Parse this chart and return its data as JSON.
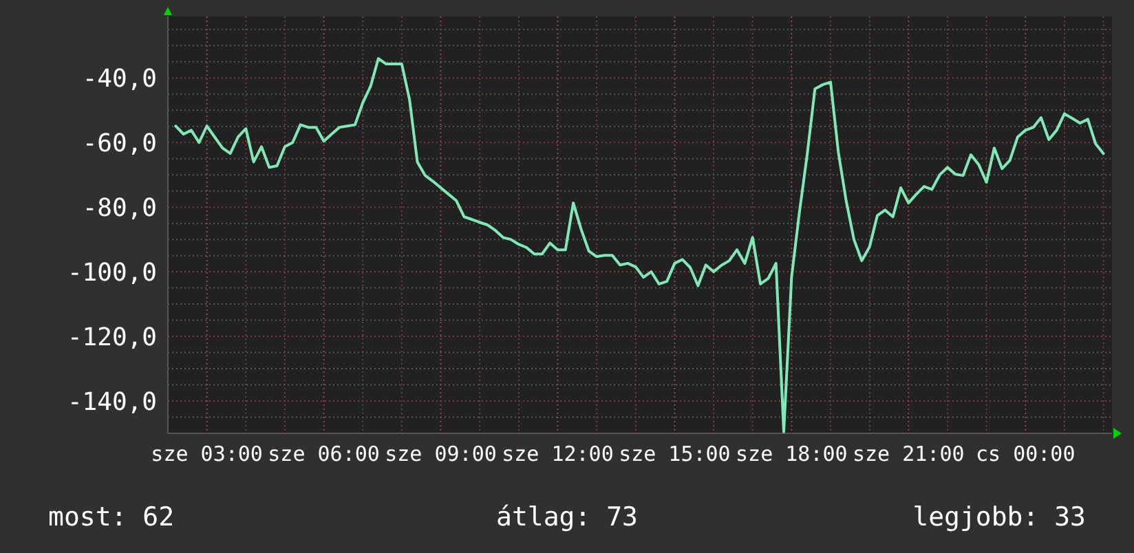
{
  "chart_data": {
    "type": "line",
    "categories": [
      null,
      null,
      null,
      null,
      "sze 03:00",
      null,
      null,
      null,
      null,
      null,
      null,
      null,
      null,
      null,
      null,
      null,
      null,
      null,
      null,
      "sze 06:00",
      null,
      null,
      null,
      null,
      null,
      null,
      null,
      null,
      null,
      null,
      null,
      null,
      null,
      null,
      "sze 09:00",
      null,
      null,
      null,
      null,
      null,
      null,
      null,
      null,
      null,
      null,
      null,
      null,
      null,
      null,
      "sze 12:00",
      null,
      null,
      null,
      null,
      null,
      null,
      null,
      null,
      null,
      null,
      null,
      null,
      null,
      null,
      "sze 15:00",
      null,
      null,
      null,
      null,
      null,
      null,
      null,
      null,
      null,
      null,
      null,
      null,
      null,
      null,
      "sze 18:00",
      null,
      null,
      null,
      null,
      null,
      null,
      null,
      null,
      null,
      null,
      null,
      null,
      null,
      null,
      "sze 21:00",
      null,
      null,
      null,
      null,
      null,
      null,
      null,
      null,
      null,
      null,
      null,
      null,
      null,
      null,
      "cs 00:00",
      null,
      null,
      null,
      null,
      null,
      null,
      null,
      null,
      null,
      null
    ],
    "series": [
      {
        "color": "#7fe8b4",
        "values": [
          -54.9,
          -57.4,
          -56.2,
          -60.0,
          -54.9,
          -58.3,
          -61.7,
          -63.4,
          -58.3,
          -55.7,
          -66.0,
          -61.3,
          -67.7,
          -67.2,
          -61.3,
          -60.0,
          -54.5,
          -55.3,
          -55.3,
          -59.6,
          -57.4,
          -55.3,
          -54.9,
          -54.5,
          -47.7,
          -42.6,
          -34.0,
          -35.7,
          -35.7,
          -35.7,
          -46.8,
          -66.0,
          -70.2,
          -72.0,
          -74.0,
          -76.0,
          -78.0,
          -83.0,
          -83.8,
          -84.7,
          -85.5,
          -87.2,
          -89.4,
          -90.0,
          -91.5,
          -92.5,
          -94.5,
          -94.5,
          -91.1,
          -93.2,
          -93.2,
          -78.7,
          -86.8,
          -93.6,
          -95.3,
          -94.9,
          -94.9,
          -97.9,
          -97.4,
          -98.5,
          -101.7,
          -100.0,
          -103.8,
          -103.0,
          -97.4,
          -96.2,
          -98.7,
          -104.3,
          -97.9,
          -100.0,
          -98.0,
          -96.6,
          -93.2,
          -97.4,
          -89.4,
          -103.8,
          -102.1,
          -97.4,
          -149.5,
          -101.7,
          -81.7,
          -63.8,
          -43.4,
          -42.1,
          -41.3,
          -63.0,
          -78.0,
          -90.0,
          -96.6,
          -92.3,
          -82.6,
          -80.9,
          -83.0,
          -74.0,
          -78.7,
          -76.0,
          -73.6,
          -74.5,
          -70.0,
          -67.7,
          -69.8,
          -70.2,
          -63.8,
          -66.8,
          -72.3,
          -61.7,
          -68.1,
          -65.5,
          -58.3,
          -56.2,
          -55.3,
          -52.3,
          -59.1,
          -56.2,
          -51.1,
          -52.5,
          -54.0,
          -52.8,
          -60.4,
          -63.4
        ]
      }
    ],
    "ylim": [
      -150,
      -21
    ],
    "yticks": [
      {
        "value": -145,
        "label": null
      },
      {
        "value": -140,
        "label": "-140,0"
      },
      {
        "value": -135,
        "label": null
      },
      {
        "value": -130,
        "label": null
      },
      {
        "value": -125,
        "label": null
      },
      {
        "value": -120,
        "label": "-120,0"
      },
      {
        "value": -115,
        "label": null
      },
      {
        "value": -110,
        "label": null
      },
      {
        "value": -105,
        "label": null
      },
      {
        "value": -100,
        "label": "-100,0"
      },
      {
        "value": -95,
        "label": null
      },
      {
        "value": -90,
        "label": null
      },
      {
        "value": -85,
        "label": null
      },
      {
        "value": -80,
        "label": "-80,0"
      },
      {
        "value": -75,
        "label": null
      },
      {
        "value": -70,
        "label": null
      },
      {
        "value": -65,
        "label": null
      },
      {
        "value": -60,
        "label": "-60,0"
      },
      {
        "value": -55,
        "label": null
      },
      {
        "value": -50,
        "label": null
      },
      {
        "value": -45,
        "label": null
      },
      {
        "value": -40,
        "label": "-40,0"
      },
      {
        "value": -35,
        "label": null
      },
      {
        "value": -30,
        "label": null
      },
      {
        "value": -25,
        "label": null
      }
    ],
    "grid": true,
    "line_style": "solid",
    "marker": "none",
    "annotations": [
      "most: 62",
      "átlag: 73",
      "legjobb: 33"
    ]
  }
}
